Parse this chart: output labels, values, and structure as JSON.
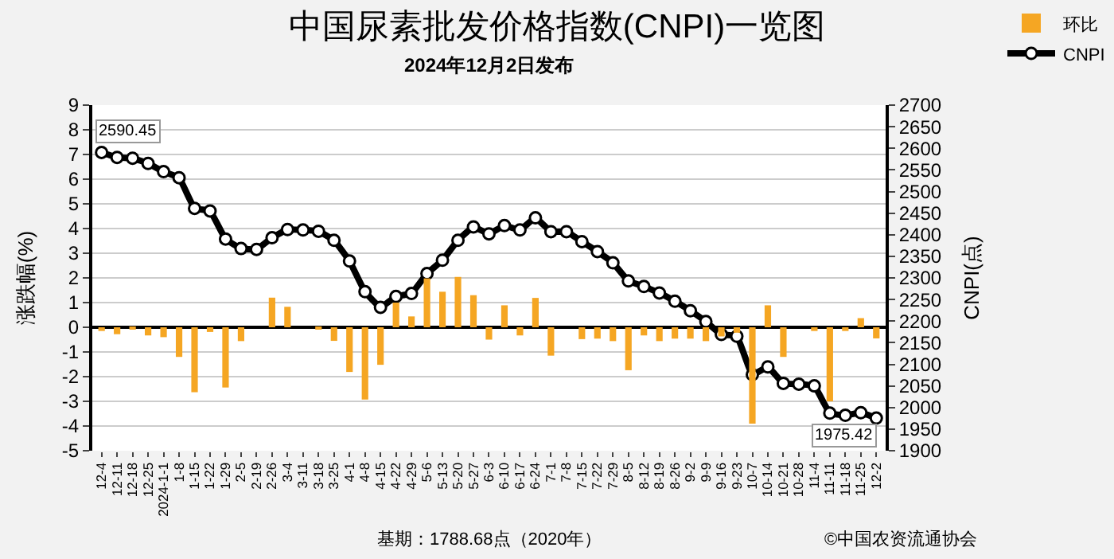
{
  "chart_data": {
    "type": "bar",
    "title": "中国尿素批发价格指数(CNPI)一览图",
    "subtitle": "2024年12月2日发布",
    "ylabel": "涨跌幅(%)",
    "y2label": "CNPI(点)",
    "categories": [
      "12-4",
      "12-11",
      "12-18",
      "12-25",
      "2024-1-1",
      "1-8",
      "1-15",
      "1-22",
      "1-29",
      "2-5",
      "2-19",
      "2-26",
      "3-4",
      "3-11",
      "3-18",
      "3-25",
      "4-1",
      "4-8",
      "4-15",
      "4-22",
      "4-29",
      "5-6",
      "5-13",
      "5-20",
      "5-27",
      "6-3",
      "6-10",
      "6-17",
      "6-24",
      "7-1",
      "7-8",
      "7-15",
      "7-22",
      "7-29",
      "8-5",
      "8-12",
      "8-19",
      "8-26",
      "9-2",
      "9-9",
      "9-16",
      "9-23",
      "10-7",
      "10-14",
      "10-21",
      "10-28",
      "11-4",
      "11-11",
      "11-18",
      "11-25",
      "12-2"
    ],
    "series": [
      {
        "name": "环比",
        "color": "#f5a623",
        "values": [
          -0.15,
          -0.28,
          -0.05,
          -0.33,
          -0.4,
          -1.2,
          -2.63,
          -0.19,
          -2.44,
          -0.56,
          0,
          1.2,
          0.83,
          0,
          -0.05,
          -0.55,
          -1.81,
          -2.93,
          -1.52,
          1.0,
          0.44,
          1.98,
          1.44,
          2.04,
          1.3,
          -0.5,
          0.89,
          -0.33,
          1.19,
          -1.15,
          0,
          -0.48,
          -0.46,
          -0.56,
          -1.74,
          -0.33,
          -0.56,
          -0.46,
          -0.46,
          -0.56,
          -0.37,
          -0.22,
          -3.9,
          0.89,
          -1.2,
          0,
          -0.15,
          -3.0,
          -0.15,
          0.37,
          -0.45
        ]
      },
      {
        "name": "CNPI",
        "type": "line",
        "axis": "y2",
        "color": "#000000",
        "marker": "circle",
        "values": [
          2590.45,
          2579,
          2577,
          2565,
          2546,
          2532,
          2461,
          2455,
          2390,
          2368,
          2366,
          2393,
          2412,
          2411,
          2408,
          2387,
          2339,
          2268,
          2232,
          2257,
          2264,
          2310,
          2341,
          2387,
          2418,
          2402,
          2421,
          2411,
          2439,
          2407,
          2407,
          2384,
          2361,
          2335,
          2293,
          2280,
          2265,
          2246,
          2224,
          2199,
          2169,
          2165,
          2076,
          2094,
          2056,
          2054,
          2050,
          1987,
          1982,
          1988,
          1975.42
        ]
      }
    ],
    "ylim": [
      -5,
      9
    ],
    "yticks": [
      -5,
      -4,
      -3,
      -2,
      -1,
      0,
      1,
      2,
      3,
      4,
      5,
      6,
      7,
      8,
      9
    ],
    "y2lim": [
      1900,
      2700
    ],
    "y2ticks": [
      1900,
      1950,
      2000,
      2050,
      2100,
      2150,
      2200,
      2250,
      2300,
      2350,
      2400,
      2450,
      2500,
      2550,
      2600,
      2650,
      2700
    ],
    "grid": "y",
    "legend": "top right",
    "annotations": [
      "2590.45",
      "1975.42",
      "基期：1788.68点（2020年）",
      "©中国农资流通协会"
    ]
  }
}
